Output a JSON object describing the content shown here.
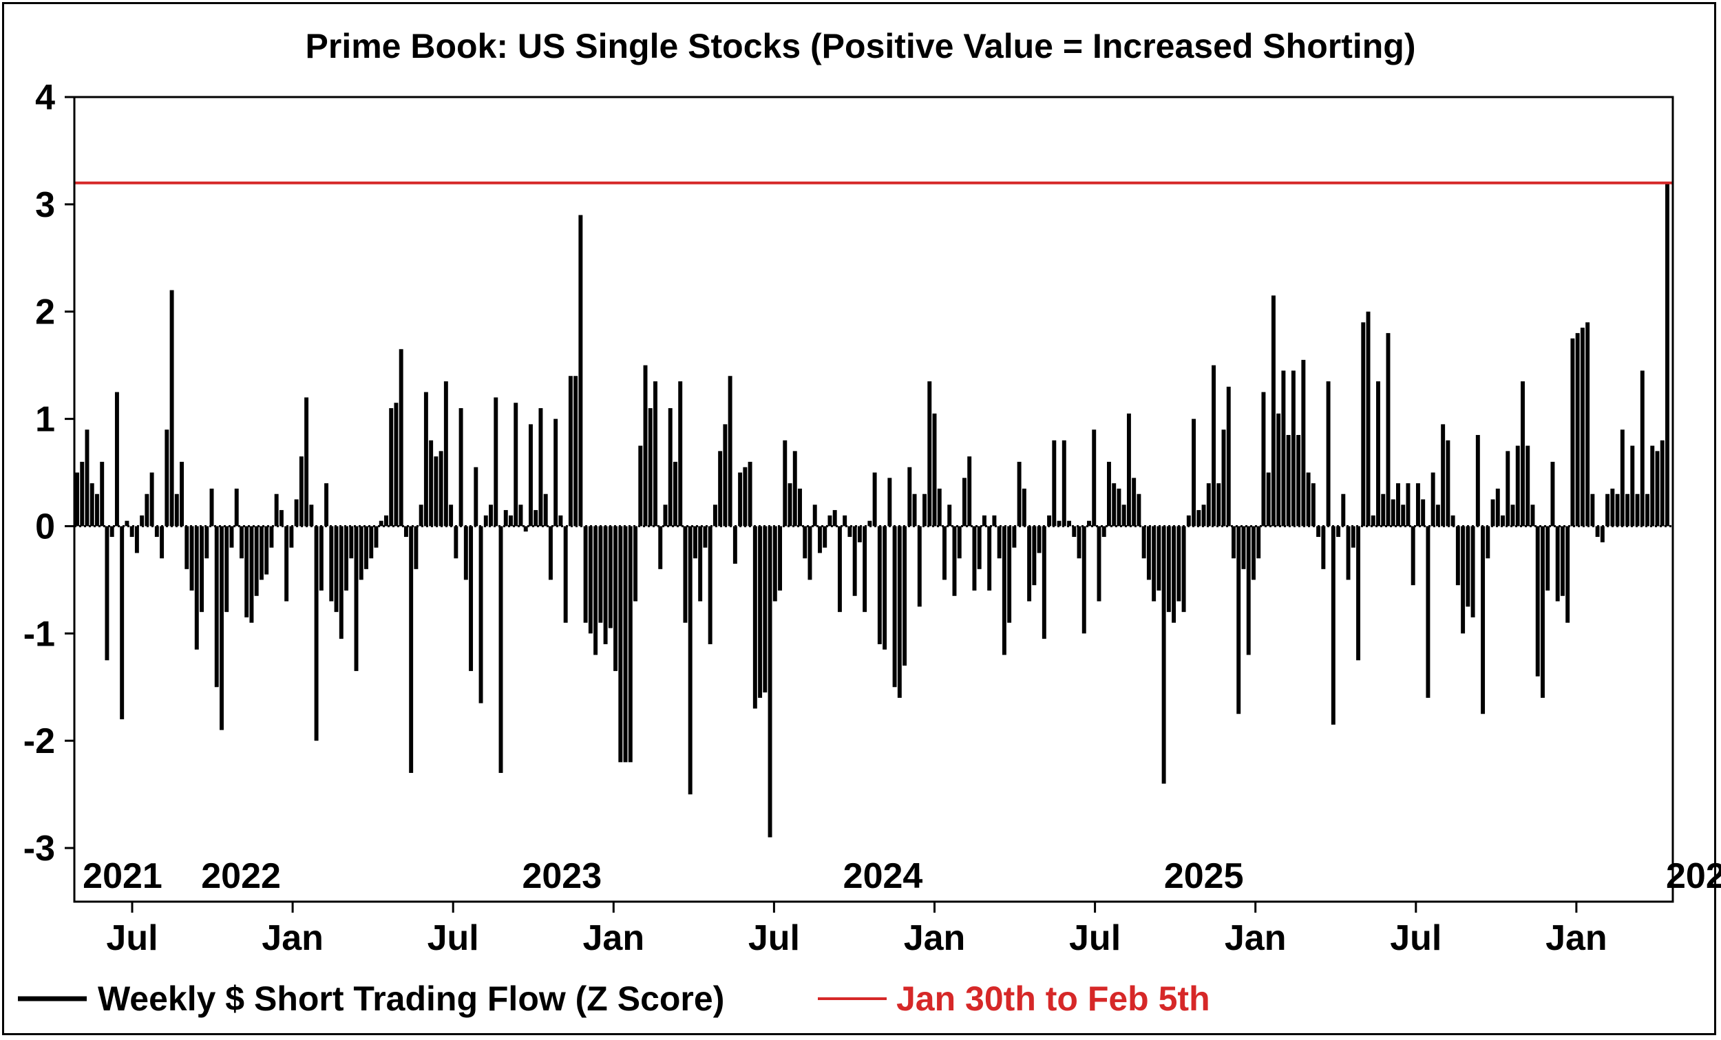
{
  "chart_data": {
    "type": "bar",
    "title": "Prime Book: US Single Stocks (Positive Value = Increased Shorting)",
    "ylim": [
      -3.5,
      4
    ],
    "y_ticks": [
      "4",
      "3",
      "2",
      "1",
      "0",
      "-1",
      "-2",
      "-3"
    ],
    "year_labels": [
      "2021",
      "2022",
      "2023",
      "2024",
      "2025",
      "202"
    ],
    "month_ticks": [
      "Jul",
      "Jan",
      "Jul",
      "Jan",
      "Jul",
      "Jan",
      "Jul",
      "Jan",
      "Jul",
      "Jan"
    ],
    "x_start": "2021-01",
    "x_end": "2026-02",
    "frequency": "weekly",
    "series": [
      {
        "name": "Weekly $ Short Trading Flow (Z Score)",
        "color": "#000000",
        "values": [
          0.5,
          0.6,
          0.9,
          0.4,
          0.3,
          0.6,
          -1.25,
          -0.1,
          1.25,
          -1.8,
          0.05,
          -0.1,
          -0.25,
          0.1,
          0.3,
          0.5,
          -0.1,
          -0.3,
          0.9,
          2.2,
          0.3,
          0.6,
          -0.4,
          -0.6,
          -1.15,
          -0.8,
          -0.3,
          0.35,
          -1.5,
          -1.9,
          -0.8,
          -0.2,
          0.35,
          -0.3,
          -0.85,
          -0.9,
          -0.65,
          -0.5,
          -0.45,
          -0.2,
          0.3,
          0.15,
          -0.7,
          -0.2,
          0.25,
          0.65,
          1.2,
          0.2,
          -2.0,
          -0.6,
          0.4,
          -0.7,
          -0.8,
          -1.05,
          -0.6,
          -0.3,
          -1.35,
          -0.5,
          -0.4,
          -0.3,
          -0.2,
          0.05,
          0.1,
          1.1,
          1.15,
          1.65,
          -0.1,
          -2.3,
          -0.4,
          0.2,
          1.25,
          0.8,
          0.65,
          0.7,
          1.35,
          0.2,
          -0.3,
          1.1,
          -0.5,
          -1.35,
          0.55,
          -1.65,
          0.1,
          0.2,
          1.2,
          -2.3,
          0.15,
          0.1,
          1.15,
          0.2,
          -0.05,
          0.95,
          0.15,
          1.1,
          0.3,
          -0.5,
          1.0,
          0.1,
          -0.9,
          1.4,
          1.4,
          2.9,
          -0.9,
          -1.0,
          -1.2,
          -0.9,
          -1.1,
          -0.95,
          -1.35,
          -2.2,
          -2.2,
          -2.2,
          -0.7,
          0.75,
          1.5,
          1.1,
          1.35,
          -0.4,
          0.2,
          1.1,
          0.6,
          1.35,
          -0.9,
          -2.5,
          -0.3,
          -0.7,
          -0.2,
          -1.1,
          0.2,
          0.7,
          0.95,
          1.4,
          -0.35,
          0.5,
          0.55,
          0.6,
          -1.7,
          -1.6,
          -1.55,
          -2.9,
          -0.7,
          -0.6,
          0.8,
          0.4,
          0.7,
          0.35,
          -0.3,
          -0.5,
          0.2,
          -0.25,
          -0.2,
          0.1,
          0.15,
          -0.8,
          0.1,
          -0.1,
          -0.65,
          -0.15,
          -0.8,
          0.05,
          0.5,
          -1.1,
          -1.15,
          0.45,
          -1.5,
          -1.6,
          -1.3,
          0.55,
          0.3,
          -0.75,
          0.3,
          1.35,
          1.05,
          0.35,
          -0.5,
          0.2,
          -0.65,
          -0.3,
          0.45,
          0.65,
          -0.6,
          -0.4,
          0.1,
          -0.6,
          0.1,
          -0.3,
          -1.2,
          -0.9,
          -0.2,
          0.6,
          0.35,
          -0.7,
          -0.55,
          -0.25,
          -1.05,
          0.1,
          0.8,
          0.05,
          0.8,
          0.05,
          -0.1,
          -0.3,
          -1.0,
          0.05,
          0.9,
          -0.7,
          -0.1,
          0.6,
          0.4,
          0.35,
          0.2,
          1.05,
          0.45,
          0.3,
          -0.3,
          -0.5,
          -0.7,
          -0.6,
          -2.4,
          -0.8,
          -0.9,
          -0.7,
          -0.8,
          0.1,
          1.0,
          0.15,
          0.2,
          0.4,
          1.5,
          0.4,
          0.9,
          1.3,
          -0.3,
          -1.75,
          -0.4,
          -1.2,
          -0.5,
          -0.3,
          1.25,
          0.5,
          2.15,
          1.05,
          1.45,
          0.85,
          1.45,
          0.85,
          1.55,
          0.5,
          0.4,
          -0.1,
          -0.4,
          1.35,
          -1.85,
          -0.1,
          0.3,
          -0.5,
          -0.2,
          -1.25,
          1.9,
          2.0,
          0.1,
          1.35,
          0.3,
          1.8,
          0.25,
          0.4,
          0.2,
          0.4,
          -0.55,
          0.4,
          0.25,
          -1.6,
          0.5,
          0.2,
          0.95,
          0.8,
          0.1,
          -0.55,
          -1.0,
          -0.75,
          -0.85,
          0.85,
          -1.75,
          -0.3,
          0.25,
          0.35,
          0.1,
          0.7,
          0.2,
          0.75,
          1.35,
          0.75,
          0.2,
          -1.4,
          -1.6,
          -0.6,
          0.6,
          -0.7,
          -0.65,
          -0.9,
          1.75,
          1.8,
          1.85,
          1.9,
          0.3,
          -0.1,
          -0.15,
          0.3,
          0.35,
          0.3,
          0.9,
          0.3,
          0.75,
          0.3,
          1.45,
          0.3,
          0.75,
          0.7,
          0.8,
          3.2
        ]
      }
    ],
    "reference_line": {
      "name": "Jan 30th to Feb 5th",
      "value": 3.2,
      "color": "#d62828"
    },
    "legend": [
      {
        "label": "Weekly $ Short Trading Flow (Z Score)",
        "color": "#000000"
      },
      {
        "label": "Jan 30th to Feb 5th",
        "color": "#d62828"
      }
    ],
    "legend_position": "bottom-left",
    "grid": false
  }
}
